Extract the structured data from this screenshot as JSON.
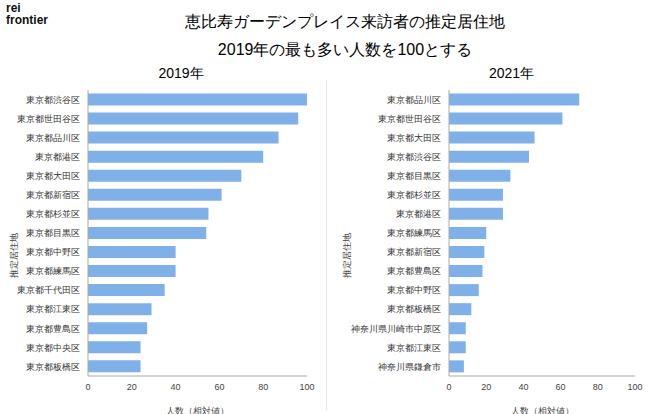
{
  "logo_lines": [
    "rei",
    "frontier"
  ],
  "title": "恵比寿ガーデンプレイス来訪者の推定居住地",
  "subtitle": "2019年の最も多い人数を100とする",
  "chart_data": [
    {
      "type": "bar",
      "orientation": "horizontal",
      "title": "2019年",
      "xlabel": "人数（相対値）",
      "ylabel": "推定居住地",
      "categories": [
        "東京都渋谷区",
        "東京都世田谷区",
        "東京都品川区",
        "東京都港区",
        "東京都大田区",
        "東京都新宿区",
        "東京都杉並区",
        "東京都目黒区",
        "東京都中野区",
        "東京都練馬区",
        "東京都千代田区",
        "東京都江東区",
        "東京都豊島区",
        "東京都中央区",
        "東京都板橋区"
      ],
      "values": [
        100,
        96,
        87,
        80,
        70,
        61,
        55,
        54,
        40,
        40,
        35,
        29,
        27,
        24,
        24
      ],
      "color": "#7fb0e8",
      "xlim": [
        0,
        100
      ],
      "xticks": [
        0,
        20,
        40,
        60,
        80,
        100
      ],
      "grid": false
    },
    {
      "type": "bar",
      "orientation": "horizontal",
      "title": "2021年",
      "xlabel": "人数（相対値）",
      "ylabel": "推定居住地",
      "categories": [
        "東京都品川区",
        "東京都世田谷区",
        "東京都大田区",
        "東京都渋谷区",
        "東京都目黒区",
        "東京都杉並区",
        "東京都港区",
        "東京都練馬区",
        "東京都新宿区",
        "東京都豊島区",
        "東京都中野区",
        "東京都板橋区",
        "神奈川県川崎市中原区",
        "東京都江東区",
        "神奈川県鎌倉市"
      ],
      "values": [
        70,
        61,
        46,
        43,
        33,
        29,
        29,
        20,
        19,
        18,
        16,
        12,
        9,
        9,
        8
      ],
      "color": "#7fb0e8",
      "xlim": [
        0,
        100
      ],
      "xticks": [
        0,
        20,
        40,
        60,
        80,
        100
      ],
      "grid": false
    }
  ]
}
